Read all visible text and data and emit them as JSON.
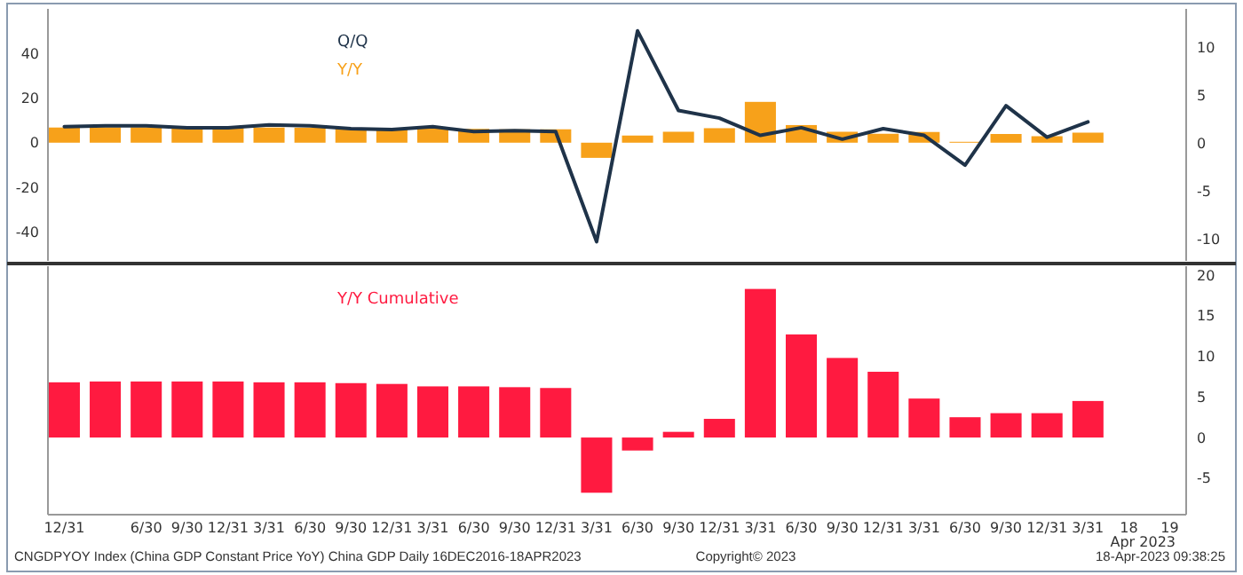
{
  "chart_data": [
    {
      "type": "bar",
      "categories": [
        null,
        null,
        null,
        null,
        null,
        null,
        null,
        null,
        null,
        null,
        null,
        null,
        null,
        null,
        null,
        null,
        null,
        null,
        null,
        null,
        null,
        null,
        null,
        null,
        null,
        null,
        null,
        null
      ],
      "series": [
        {
          "name": "Y/Y",
          "color": "#f7a11a",
          "values": [
            6.8,
            6.9,
            6.9,
            6.8,
            6.8,
            6.8,
            6.7,
            6.5,
            6.4,
            6.4,
            6.2,
            6.0,
            6.0,
            -6.8,
            3.2,
            4.9,
            6.5,
            18.3,
            7.9,
            4.9,
            4.0,
            4.8,
            0.4,
            3.9,
            2.9,
            4.5,
            null,
            null
          ]
        },
        {
          "name": "Q/Q",
          "type": "line",
          "axis": "y2",
          "color": "#1f3349",
          "values": [
            1.7,
            1.8,
            1.8,
            1.6,
            1.6,
            1.9,
            1.8,
            1.5,
            1.4,
            1.7,
            1.2,
            1.3,
            1.2,
            -10.3,
            11.7,
            3.4,
            2.6,
            0.8,
            1.6,
            0.4,
            1.5,
            0.8,
            -2.3,
            3.9,
            0.6,
            2.2,
            null,
            null
          ]
        }
      ],
      "ylim": [
        -53,
        60
      ],
      "yticks": [
        -40,
        -20,
        0,
        20,
        40
      ],
      "y2lim": [
        -12.3,
        14
      ],
      "y2ticks": [
        -10,
        -5,
        0,
        5,
        10
      ],
      "tick_labels": "y",
      "legend": "top",
      "grid": false
    },
    {
      "type": "bar",
      "categories": [
        "12/31",
        null,
        "6/30",
        "9/30",
        "12/31",
        "3/31",
        "6/30",
        "9/30",
        "12/31",
        "3/31",
        "6/30",
        "9/30",
        "12/31",
        "3/31",
        "6/30",
        "9/30",
        "12/31",
        "3/31",
        "6/30",
        "9/30",
        "12/31",
        "3/31",
        "6/30",
        "9/30",
        "12/31",
        "3/31",
        "18",
        "19"
      ],
      "series": [
        {
          "name": "Y/Y Cumulative",
          "axis": "y2",
          "color": "#ff1a40",
          "values": [
            6.8,
            6.9,
            6.9,
            6.9,
            6.9,
            6.8,
            6.8,
            6.7,
            6.6,
            6.3,
            6.3,
            6.2,
            6.1,
            -6.8,
            -1.6,
            0.7,
            2.3,
            18.3,
            12.7,
            9.8,
            8.1,
            4.8,
            2.5,
            3.0,
            3.0,
            4.5,
            null,
            null
          ]
        }
      ],
      "y2lim": [
        -9.5,
        21.1
      ],
      "y2ticks": [
        -5,
        0,
        5,
        10,
        15,
        20
      ],
      "xlabel": "Apr 2023",
      "legend": "top",
      "grid": false,
      "annotations": [
        "CNGDPYOY Index (China GDP Constant Price YoY) China GDP  Daily 16DEC2016-18APR2023",
        "Copyright© 2023",
        "18-Apr-2023 09:38:25"
      ]
    }
  ]
}
